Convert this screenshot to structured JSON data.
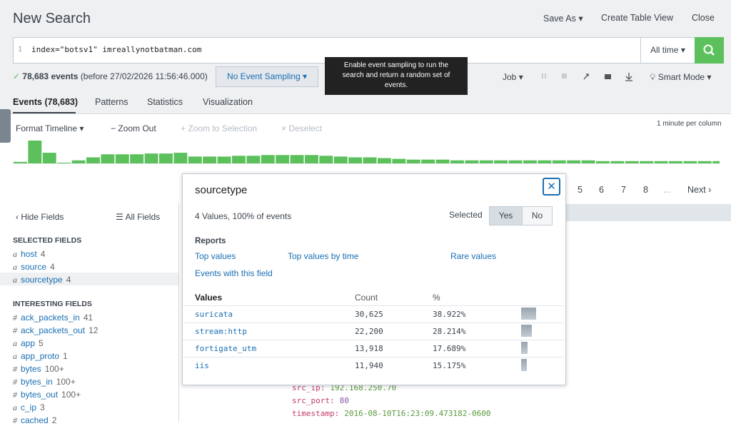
{
  "header": {
    "title": "New Search",
    "actions": [
      "Save As",
      "Create Table View",
      "Close"
    ]
  },
  "search": {
    "line_number": "1",
    "query": "index=\"botsv1\" imreallynotbatman.com",
    "time_range": "All time"
  },
  "status": {
    "events": "78,683 events",
    "detail": "(before 27/02/2026 11:56:46.000)",
    "sampling": "No Event Sampling",
    "tooltip": "Enable event sampling to run the search and return a random set of events.",
    "job": "Job",
    "mode": "Smart Mode"
  },
  "tabs": [
    "Events (78,683)",
    "Patterns",
    "Statistics",
    "Visualization"
  ],
  "timeline": {
    "format": "Format Timeline",
    "zoom_out": "Zoom Out",
    "zoom_selection": "Zoom to Selection",
    "deselect": "Deselect",
    "scale": "1 minute per column",
    "histogram": [
      2,
      30,
      14,
      1,
      4,
      8,
      12,
      12,
      12,
      13,
      13,
      14,
      9,
      9,
      9,
      10,
      10,
      11,
      11,
      11,
      11,
      10,
      9,
      8,
      8,
      7,
      6,
      5,
      5,
      5,
      4,
      4,
      4,
      4,
      4,
      4,
      4,
      4,
      4,
      4,
      3,
      3,
      3,
      3,
      3,
      3,
      3,
      3,
      3
    ]
  },
  "pagination": [
    "5",
    "6",
    "7",
    "8",
    "...",
    "Next"
  ],
  "sidebar": {
    "hide_fields": "Hide Fields",
    "all_fields": "All Fields",
    "selected_heading": "SELECTED FIELDS",
    "selected": [
      {
        "type": "a",
        "name": "host",
        "count": "4"
      },
      {
        "type": "a",
        "name": "source",
        "count": "4"
      },
      {
        "type": "a",
        "name": "sourcetype",
        "count": "4"
      }
    ],
    "interesting_heading": "INTERESTING FIELDS",
    "interesting": [
      {
        "type": "#",
        "name": "ack_packets_in",
        "count": "41"
      },
      {
        "type": "#",
        "name": "ack_packets_out",
        "count": "12"
      },
      {
        "type": "a",
        "name": "app",
        "count": "5"
      },
      {
        "type": "a",
        "name": "app_proto",
        "count": "1"
      },
      {
        "type": "#",
        "name": "bytes",
        "count": "100+"
      },
      {
        "type": "#",
        "name": "bytes_in",
        "count": "100+"
      },
      {
        "type": "#",
        "name": "bytes_out",
        "count": "100+"
      },
      {
        "type": "a",
        "name": "c_ip",
        "count": "3"
      },
      {
        "type": "#",
        "name": "cached",
        "count": "2"
      }
    ]
  },
  "popup": {
    "title": "sourcetype",
    "summary": "4 Values, 100% of events",
    "selected_label": "Selected",
    "yes": "Yes",
    "no": "No",
    "reports_heading": "Reports",
    "reports": [
      "Top values",
      "Top values by time",
      "Rare values",
      "Events with this field"
    ],
    "table": {
      "columns": [
        "Values",
        "Count",
        "%"
      ],
      "values": [
        "suricata",
        "stream:http",
        "fortigate_utm",
        "iis"
      ],
      "counts": [
        "30,625",
        "22,200",
        "13,918",
        "11,940"
      ],
      "percent": {
        "values": [
          38.922,
          28.214,
          17.689,
          15.175
        ],
        "value_labels": [
          "38.922%",
          "28.214%",
          "17.689%",
          "15.175%"
        ]
      }
    }
  },
  "event": [
    {
      "key": "src_ip:",
      "value": "192.168.250.70"
    },
    {
      "key": "src_port:",
      "value": "80"
    },
    {
      "key": "timestamp:",
      "value": "2016-08-10T16:23:09.473182-0600"
    }
  ]
}
